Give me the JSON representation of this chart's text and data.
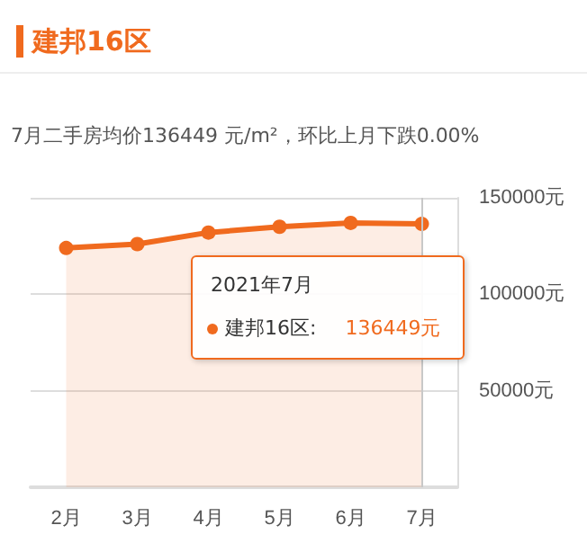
{
  "chart_data": {
    "type": "area",
    "subtitle": "7月二手房均价136449 元/m²，环比上月下跌0.00%",
    "categories": [
      "2月",
      "3月",
      "4月",
      "5月",
      "6月",
      "7月"
    ],
    "series": [
      {
        "name": "建邦16区",
        "color": "#f06a1e",
        "values": [
          124000,
          126000,
          132000,
          135000,
          137000,
          136449
        ]
      }
    ],
    "ylim": [
      0,
      150000
    ],
    "yticks": [
      {
        "value": 0,
        "label": null
      },
      {
        "value": 50000,
        "label": "50000元"
      },
      {
        "value": 100000,
        "label": "100000元"
      },
      {
        "value": 150000,
        "label": "150000元"
      }
    ],
    "grid": "y",
    "marker": "circle",
    "legend": "top left",
    "ref_lines": [
      {
        "axis": "x",
        "value": "7月",
        "color": "#c8c8c8"
      }
    ],
    "annotations": [
      "2021年7月",
      "建邦16区:",
      "136449元"
    ]
  }
}
